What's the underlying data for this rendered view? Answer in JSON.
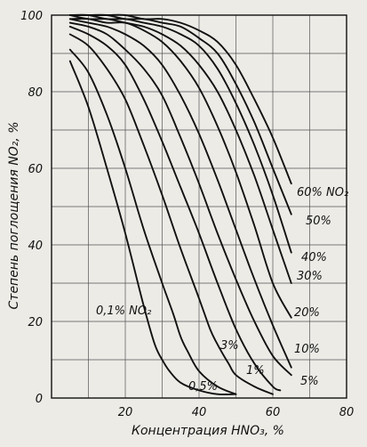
{
  "chart_data": {
    "type": "line",
    "xlabel": "Концентрация  HNO₃, %",
    "ylabel": "Степень поглощения  NO₂, %",
    "xlim": [
      0,
      80
    ],
    "ylim": [
      0,
      100
    ],
    "xticks": [
      20,
      40,
      60,
      80
    ],
    "yticks": [
      0,
      20,
      40,
      60,
      80,
      100
    ],
    "grid": true,
    "series": [
      {
        "name": "0,1% NO₂",
        "x": [
          5,
          10,
          15,
          20,
          25,
          28,
          30,
          32,
          35,
          40,
          45,
          50
        ],
        "y": [
          88,
          76,
          60,
          43,
          24,
          14,
          10,
          7,
          4,
          2,
          1,
          1
        ]
      },
      {
        "name": "0,5%",
        "x": [
          5,
          10,
          15,
          20,
          25,
          30,
          33,
          35,
          37,
          40,
          45,
          50
        ],
        "y": [
          91,
          85,
          74,
          60,
          44,
          30,
          22,
          16,
          12,
          7,
          3,
          1
        ]
      },
      {
        "name": "1%",
        "x": [
          5,
          10,
          15,
          20,
          25,
          30,
          35,
          40,
          43,
          45,
          48,
          50,
          55,
          60
        ],
        "y": [
          95,
          92,
          86,
          78,
          66,
          53,
          39,
          26,
          18,
          14,
          9,
          6,
          3,
          1
        ]
      },
      {
        "name": "3%",
        "x": [
          5,
          10,
          15,
          20,
          25,
          30,
          35,
          40,
          45,
          50,
          55,
          60,
          62
        ],
        "y": [
          97,
          95,
          92,
          87,
          78,
          67,
          55,
          43,
          30,
          18,
          9,
          3,
          2
        ]
      },
      {
        "name": "5%",
        "x": [
          5,
          10,
          15,
          20,
          25,
          30,
          35,
          40,
          45,
          50,
          55,
          60,
          65
        ],
        "y": [
          98,
          97,
          95,
          91,
          86,
          79,
          68,
          56,
          43,
          31,
          20,
          11,
          6
        ]
      },
      {
        "name": "10%",
        "x": [
          5,
          10,
          15,
          20,
          25,
          30,
          35,
          40,
          45,
          50,
          55,
          60,
          65
        ],
        "y": [
          99,
          98,
          97,
          95,
          92,
          87,
          79,
          69,
          57,
          44,
          31,
          19,
          8
        ]
      },
      {
        "name": "20%",
        "x": [
          5,
          10,
          15,
          20,
          25,
          30,
          35,
          40,
          45,
          50,
          55,
          60,
          65
        ],
        "y": [
          99,
          99,
          98,
          98,
          96,
          93,
          88,
          81,
          71,
          59,
          45,
          30,
          21
        ]
      },
      {
        "name": "30%",
        "x": [
          5,
          10,
          15,
          20,
          25,
          30,
          35,
          40,
          45,
          50,
          55,
          60,
          65
        ],
        "y": [
          100,
          99,
          99,
          98,
          97,
          95,
          92,
          87,
          80,
          70,
          58,
          44,
          30
        ]
      },
      {
        "name": "40%",
        "x": [
          5,
          10,
          15,
          20,
          25,
          30,
          35,
          40,
          45,
          50,
          55,
          60,
          65
        ],
        "y": [
          100,
          100,
          99,
          99,
          98,
          97,
          95,
          92,
          86,
          77,
          66,
          53,
          38
        ]
      },
      {
        "name": "50%",
        "x": [
          5,
          10,
          15,
          20,
          25,
          30,
          35,
          40,
          45,
          50,
          55,
          60,
          65
        ],
        "y": [
          100,
          100,
          100,
          99,
          99,
          98,
          97,
          94,
          90,
          82,
          72,
          60,
          48
        ]
      },
      {
        "name": "60% NO₂",
        "x": [
          5,
          10,
          15,
          20,
          25,
          30,
          35,
          40,
          45,
          50,
          55,
          60,
          65
        ],
        "y": [
          100,
          100,
          100,
          100,
          99,
          99,
          98,
          96,
          93,
          87,
          78,
          68,
          56
        ]
      }
    ]
  }
}
